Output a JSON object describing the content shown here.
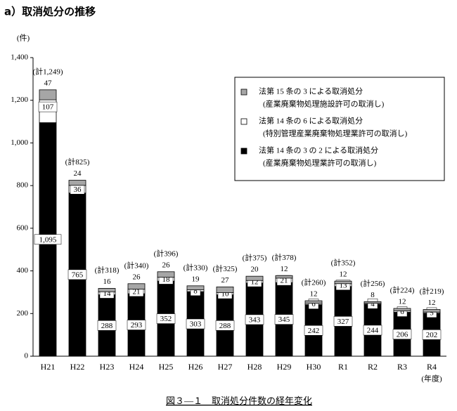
{
  "chart_data": {
    "type": "stacked_bar",
    "title": "a）取消処分の推移",
    "y_unit_label": "(件)",
    "x_unit_label": "(年度)",
    "caption": "図３—１　取消処分件数の経年変化",
    "categories": [
      "H21",
      "H22",
      "H23",
      "H24",
      "H25",
      "H26",
      "H27",
      "H28",
      "H29",
      "H30",
      "R1",
      "R2",
      "R3",
      "R4"
    ],
    "series": [
      {
        "name": "法第 14 条の 3 の 2 による取消処分",
        "note": "(産業廃棄物処理業許可の取消し)",
        "color": "#000000",
        "values": [
          1095,
          765,
          288,
          293,
          352,
          303,
          288,
          343,
          345,
          242,
          327,
          244,
          206,
          202
        ],
        "value_labels": [
          "1,095",
          "765",
          "288",
          "293",
          "352",
          "303",
          "288",
          "343",
          "345",
          "242",
          "327",
          "244",
          "206",
          "202"
        ]
      },
      {
        "name": "法第 14 条の 6 による取消処分",
        "note": "(特別管理産業廃棄物処理業許可の取消し)",
        "color": "#ffffff",
        "values": [
          107,
          36,
          14,
          21,
          18,
          8,
          10,
          12,
          21,
          6,
          13,
          4,
          6,
          5
        ]
      },
      {
        "name": "法第 15 条の 3 による取消処分",
        "note": "(産業廃棄物処理施設許可の取消し)",
        "color": "#a6a6a6",
        "values": [
          47,
          24,
          16,
          26,
          26,
          19,
          27,
          20,
          12,
          12,
          12,
          8,
          12,
          12
        ]
      }
    ],
    "total_labels": [
      "(計1,249)",
      "(計825)",
      "(計318)",
      "(計340)",
      "(計396)",
      "(計330)",
      "(計325)",
      "(計375)",
      "(計378)",
      "(計260)",
      "(計352)",
      "(計256)",
      "(計224)",
      "(計219)"
    ],
    "ylim": [
      0,
      1400
    ],
    "yticks": [
      0,
      200,
      400,
      600,
      800,
      {
        "value": 1000,
        "label": "1,000"
      },
      {
        "value": 1200,
        "label": "1,200"
      },
      {
        "value": 1400,
        "label": "1,400"
      }
    ]
  }
}
